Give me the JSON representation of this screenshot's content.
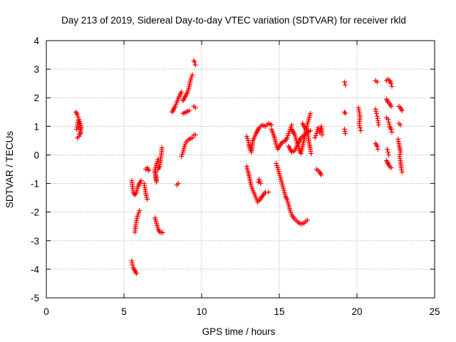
{
  "chart_data": {
    "type": "scatter",
    "title": "Day 213 of 2019, Sidereal Day-to-day VTEC variation (SDTVAR) for receiver rkld",
    "xlabel": "GPS time / hours",
    "ylabel": "SDTVAR / TECUs",
    "xlim": [
      0,
      25
    ],
    "ylim": [
      -5,
      4
    ],
    "x_ticks": [
      "0",
      "5",
      "10",
      "15",
      "20",
      "25"
    ],
    "y_ticks": [
      "4",
      "3",
      "2",
      "1",
      "0",
      "-1",
      "-2",
      "-3",
      "-4",
      "-5"
    ],
    "grid": true,
    "marker": "plus",
    "marker_color": "#ff0000",
    "series": [
      {
        "segments": [
          [
            [
              1.9,
              1.5
            ],
            [
              2.0,
              1.4
            ],
            [
              2.1,
              1.25
            ],
            [
              2.2,
              1.1
            ],
            [
              2.25,
              0.95
            ],
            [
              2.2,
              0.8
            ],
            [
              2.1,
              0.65
            ],
            [
              2.0,
              0.6
            ]
          ],
          [
            [
              1.95,
              0.9
            ],
            [
              2.0,
              1.05
            ],
            [
              2.05,
              1.2
            ],
            [
              2.15,
              1.0
            ],
            [
              2.2,
              0.75
            ]
          ],
          [
            [
              5.5,
              -3.7
            ],
            [
              5.55,
              -3.85
            ],
            [
              5.6,
              -3.95
            ],
            [
              5.7,
              -4.05
            ],
            [
              5.8,
              -4.15
            ]
          ],
          [
            [
              5.5,
              -0.9
            ],
            [
              5.55,
              -1.1
            ],
            [
              5.6,
              -1.3
            ],
            [
              5.7,
              -1.4
            ],
            [
              5.8,
              -1.3
            ],
            [
              5.9,
              -1.1
            ],
            [
              6.0,
              -1.0
            ],
            [
              6.1,
              -0.9
            ]
          ],
          [
            [
              5.7,
              -2.7
            ],
            [
              5.75,
              -2.5
            ],
            [
              5.8,
              -2.3
            ],
            [
              5.9,
              -2.1
            ],
            [
              6.0,
              -1.95
            ]
          ],
          [
            [
              6.3,
              -1.0
            ],
            [
              6.35,
              -1.15
            ],
            [
              6.4,
              -1.35
            ],
            [
              6.5,
              -1.55
            ]
          ],
          [
            [
              6.4,
              -0.5
            ],
            [
              6.5,
              -0.45
            ],
            [
              6.6,
              -0.55
            ]
          ],
          [
            [
              7.0,
              -0.6
            ],
            [
              7.05,
              -0.8
            ],
            [
              7.1,
              -0.95
            ],
            [
              7.0,
              -0.5
            ],
            [
              7.1,
              -0.3
            ],
            [
              7.2,
              -0.15
            ]
          ],
          [
            [
              7.2,
              -0.5
            ],
            [
              7.3,
              -0.4
            ],
            [
              7.35,
              -0.2
            ],
            [
              7.4,
              0.0
            ],
            [
              7.45,
              0.25
            ]
          ],
          [
            [
              7.0,
              -2.2
            ],
            [
              7.1,
              -2.4
            ],
            [
              7.2,
              -2.6
            ],
            [
              7.3,
              -2.7
            ],
            [
              7.5,
              -2.72
            ]
          ],
          [
            [
              8.4,
              -1.05
            ],
            [
              8.5,
              -1.0
            ]
          ],
          [
            [
              8.1,
              1.5
            ],
            [
              8.2,
              1.6
            ],
            [
              8.3,
              1.7
            ],
            [
              8.4,
              1.85
            ],
            [
              8.6,
              2.1
            ],
            [
              8.7,
              2.2
            ]
          ],
          [
            [
              8.8,
              1.9
            ],
            [
              8.9,
              2.0
            ],
            [
              9.0,
              2.1
            ],
            [
              9.1,
              2.2
            ],
            [
              9.2,
              2.4
            ],
            [
              9.3,
              2.65
            ],
            [
              9.4,
              2.8
            ]
          ],
          [
            [
              8.8,
              1.45
            ],
            [
              9.0,
              1.5
            ],
            [
              9.2,
              1.55
            ]
          ],
          [
            [
              8.7,
              -0.05
            ],
            [
              8.8,
              0.1
            ],
            [
              8.9,
              0.3
            ],
            [
              9.0,
              0.45
            ],
            [
              9.2,
              0.55
            ],
            [
              9.4,
              0.6
            ]
          ],
          [
            [
              9.5,
              1.7
            ],
            [
              9.6,
              1.65
            ]
          ],
          [
            [
              9.5,
              0.7
            ],
            [
              9.6,
              0.7
            ]
          ],
          [
            [
              9.5,
              3.3
            ],
            [
              9.55,
              3.25
            ],
            [
              9.6,
              3.15
            ]
          ],
          [
            [
              12.9,
              0.65
            ],
            [
              13.0,
              0.5
            ],
            [
              13.05,
              0.3
            ],
            [
              13.2,
              0.1
            ],
            [
              13.3,
              0.5
            ],
            [
              13.5,
              0.75
            ],
            [
              13.7,
              0.95
            ],
            [
              13.9,
              1.05
            ],
            [
              14.1,
              1.0
            ],
            [
              14.3,
              1.1
            ],
            [
              14.5,
              1.05
            ]
          ],
          [
            [
              12.9,
              -0.4
            ],
            [
              13.0,
              -0.6
            ],
            [
              13.1,
              -0.85
            ],
            [
              13.2,
              -1.1
            ],
            [
              13.35,
              -1.3
            ],
            [
              13.5,
              -1.5
            ],
            [
              13.6,
              -1.65
            ],
            [
              13.7,
              -1.6
            ],
            [
              13.9,
              -1.45
            ],
            [
              14.1,
              -1.3
            ],
            [
              14.3,
              -1.3
            ]
          ],
          [
            [
              13.8,
              -1.0
            ],
            [
              13.7,
              -0.85
            ],
            [
              13.65,
              -0.95
            ]
          ],
          [
            [
              14.5,
              0.9
            ],
            [
              14.7,
              0.6
            ],
            [
              14.8,
              0.35
            ],
            [
              14.9,
              0.2
            ],
            [
              15.0,
              0.3
            ],
            [
              15.2,
              0.45
            ],
            [
              15.4,
              0.5
            ],
            [
              15.5,
              0.6
            ],
            [
              15.6,
              0.75
            ],
            [
              15.7,
              0.9
            ],
            [
              15.8,
              1.05
            ]
          ],
          [
            [
              14.8,
              -0.3
            ],
            [
              14.9,
              -0.45
            ],
            [
              15.0,
              -0.65
            ],
            [
              15.1,
              -0.85
            ],
            [
              15.2,
              -1.05
            ],
            [
              15.3,
              -1.25
            ],
            [
              15.4,
              -1.45
            ],
            [
              15.5,
              -1.55
            ],
            [
              15.6,
              -1.75
            ],
            [
              15.7,
              -1.95
            ],
            [
              15.8,
              -2.1
            ],
            [
              16.0,
              -2.25
            ],
            [
              16.2,
              -2.35
            ],
            [
              16.4,
              -2.42
            ],
            [
              16.6,
              -2.38
            ],
            [
              16.8,
              -2.28
            ]
          ],
          [
            [
              15.8,
              0.9
            ],
            [
              16.0,
              0.7
            ],
            [
              16.1,
              0.5
            ],
            [
              16.2,
              0.35
            ],
            [
              16.3,
              0.15
            ],
            [
              16.4,
              0.05
            ],
            [
              16.5,
              0.3
            ],
            [
              16.6,
              0.55
            ],
            [
              16.7,
              0.75
            ],
            [
              16.8,
              1.05
            ],
            [
              16.9,
              1.25
            ],
            [
              17.0,
              1.45
            ]
          ],
          [
            [
              15.6,
              0.3
            ],
            [
              15.8,
              0.1
            ],
            [
              16.0,
              0.15
            ],
            [
              16.2,
              0.4
            ],
            [
              16.4,
              0.6
            ],
            [
              16.6,
              0.7
            ],
            [
              16.8,
              0.8
            ],
            [
              17.0,
              0.85
            ]
          ],
          [
            [
              16.5,
              1.1
            ],
            [
              16.7,
              0.9
            ],
            [
              16.85,
              0.7
            ],
            [
              16.9,
              0.5
            ],
            [
              17.0,
              0.2
            ],
            [
              17.05,
              0.05
            ]
          ],
          [
            [
              17.3,
              0.6
            ],
            [
              17.4,
              0.75
            ],
            [
              17.5,
              0.95
            ],
            [
              17.6,
              0.8
            ],
            [
              17.7,
              1.0
            ],
            [
              17.75,
              0.7
            ]
          ],
          [
            [
              17.4,
              -0.5
            ],
            [
              17.5,
              -0.55
            ],
            [
              17.6,
              -0.6
            ],
            [
              17.7,
              -0.7
            ]
          ],
          [
            [
              19.2,
              2.55
            ],
            [
              19.25,
              2.45
            ]
          ],
          [
            [
              19.2,
              1.5
            ],
            [
              19.25,
              1.45
            ]
          ],
          [
            [
              19.2,
              0.9
            ],
            [
              19.25,
              0.75
            ]
          ],
          [
            [
              20.1,
              1.65
            ],
            [
              20.15,
              1.5
            ],
            [
              20.2,
              1.3
            ],
            [
              20.15,
              1.1
            ],
            [
              20.2,
              0.95
            ],
            [
              20.25,
              0.85
            ]
          ],
          [
            [
              21.2,
              2.6
            ],
            [
              21.3,
              2.55
            ]
          ],
          [
            [
              21.2,
              1.6
            ],
            [
              21.25,
              1.45
            ],
            [
              21.3,
              1.35
            ],
            [
              21.35,
              1.2
            ],
            [
              21.4,
              1.05
            ]
          ],
          [
            [
              21.2,
              0.4
            ],
            [
              21.3,
              0.3
            ],
            [
              21.35,
              0.2
            ]
          ],
          [
            [
              21.9,
              2.6
            ],
            [
              22.0,
              2.65
            ],
            [
              22.1,
              2.6
            ],
            [
              22.2,
              2.5
            ],
            [
              22.25,
              2.4
            ]
          ],
          [
            [
              21.9,
              1.95
            ],
            [
              22.0,
              1.85
            ],
            [
              22.1,
              1.8
            ],
            [
              22.2,
              1.7
            ]
          ],
          [
            [
              21.9,
              1.3
            ],
            [
              22.0,
              1.25
            ],
            [
              22.05,
              1.15
            ],
            [
              22.1,
              1.0
            ],
            [
              22.2,
              0.9
            ],
            [
              22.25,
              0.8
            ]
          ],
          [
            [
              21.95,
              0.2
            ],
            [
              22.0,
              0.1
            ],
            [
              22.05,
              0.0
            ]
          ],
          [
            [
              21.9,
              -0.2
            ],
            [
              22.0,
              -0.3
            ],
            [
              22.1,
              -0.4
            ],
            [
              22.2,
              -0.45
            ]
          ],
          [
            [
              22.7,
              1.7
            ],
            [
              22.8,
              1.65
            ],
            [
              22.9,
              1.55
            ]
          ],
          [
            [
              22.7,
              1.1
            ],
            [
              22.8,
              1.05
            ]
          ],
          [
            [
              22.65,
              0.55
            ],
            [
              22.7,
              0.4
            ],
            [
              22.8,
              0.1
            ],
            [
              22.75,
              -0.05
            ],
            [
              22.8,
              -0.2
            ],
            [
              22.85,
              -0.45
            ],
            [
              22.9,
              -0.6
            ]
          ]
        ]
      }
    ]
  }
}
